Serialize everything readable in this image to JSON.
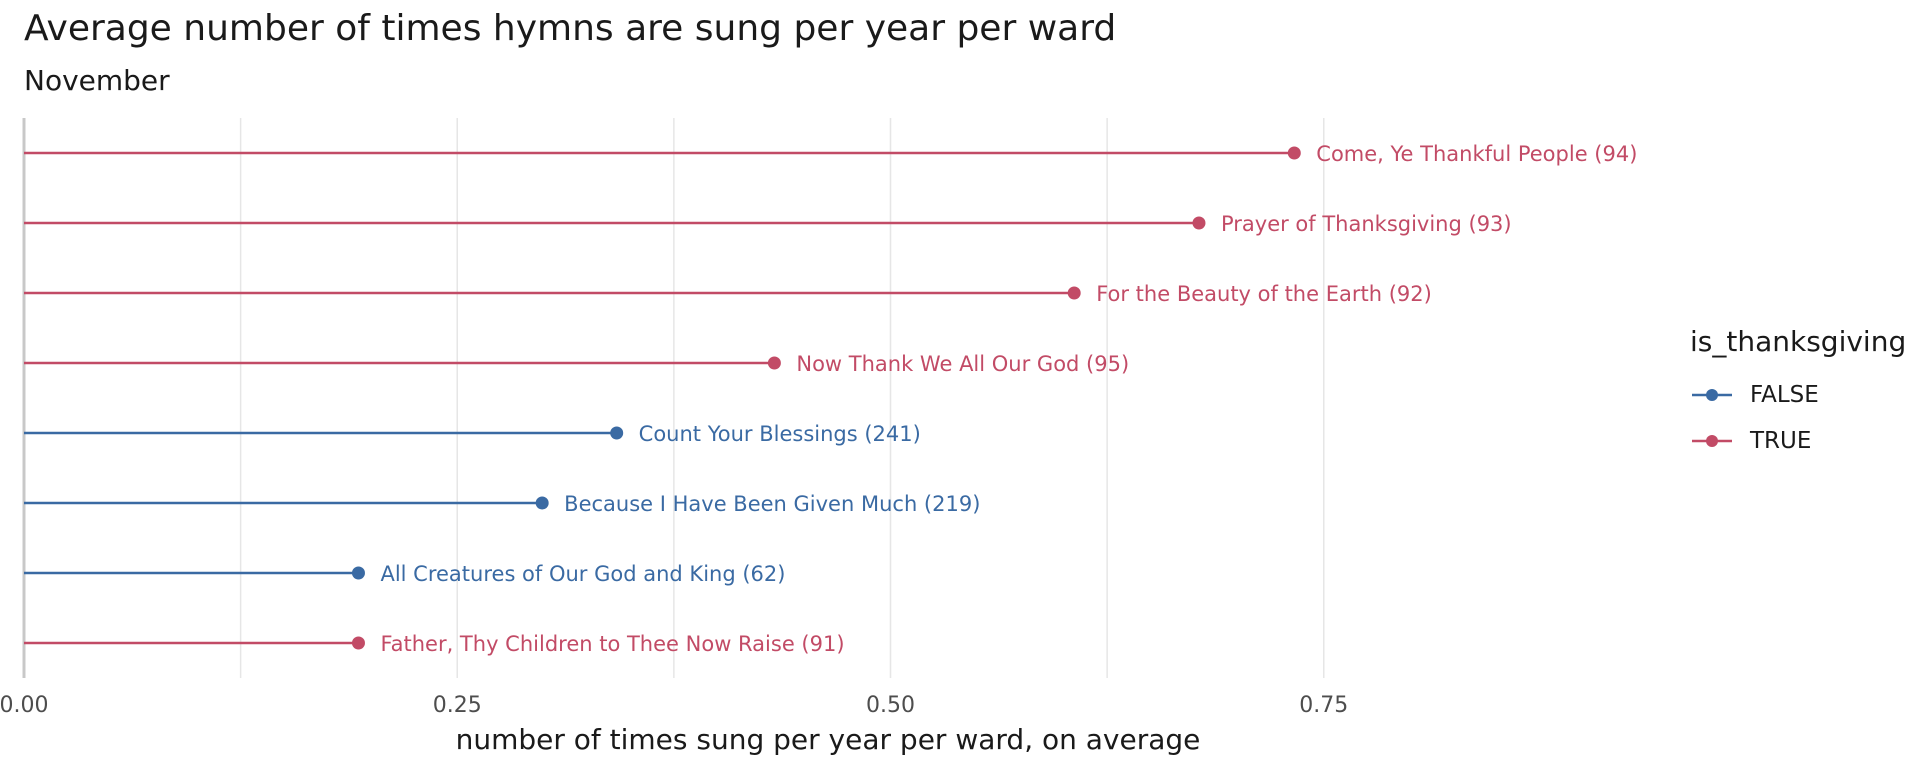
{
  "chart_data": {
    "type": "lollipop",
    "title": "Average number of times hymns are sung per year per ward",
    "subtitle": "November",
    "xlabel": "number of times sung per year per ward, on average",
    "ylabel": "",
    "xlim": [
      0,
      0.87
    ],
    "xticks": [
      0,
      0.25,
      0.5,
      0.75
    ],
    "xtick_labels": [
      "0.00",
      "0.25",
      "0.50",
      "0.75"
    ],
    "grid": true,
    "legend": {
      "title": "is_thanksgiving",
      "placement": "right",
      "entries": [
        {
          "label": "FALSE",
          "color": "#3a6aa3"
        },
        {
          "label": "TRUE",
          "color": "#c24b66"
        }
      ]
    },
    "points": [
      {
        "label": "Come, Ye Thankful People (94)",
        "value": 0.733,
        "is_thanksgiving": "TRUE"
      },
      {
        "label": "Prayer of Thanksgiving (93)",
        "value": 0.678,
        "is_thanksgiving": "TRUE"
      },
      {
        "label": "For the Beauty of the Earth (92)",
        "value": 0.606,
        "is_thanksgiving": "TRUE"
      },
      {
        "label": "Now Thank We All Our God (95)",
        "value": 0.433,
        "is_thanksgiving": "TRUE"
      },
      {
        "label": "Count Your Blessings (241)",
        "value": 0.342,
        "is_thanksgiving": "FALSE"
      },
      {
        "label": "Because I Have Been Given Much (219)",
        "value": 0.299,
        "is_thanksgiving": "FALSE"
      },
      {
        "label": "All Creatures of Our God and King (62)",
        "value": 0.193,
        "is_thanksgiving": "FALSE"
      },
      {
        "label": "Father, Thy Children to Thee Now Raise (91)",
        "value": 0.193,
        "is_thanksgiving": "TRUE"
      }
    ]
  }
}
